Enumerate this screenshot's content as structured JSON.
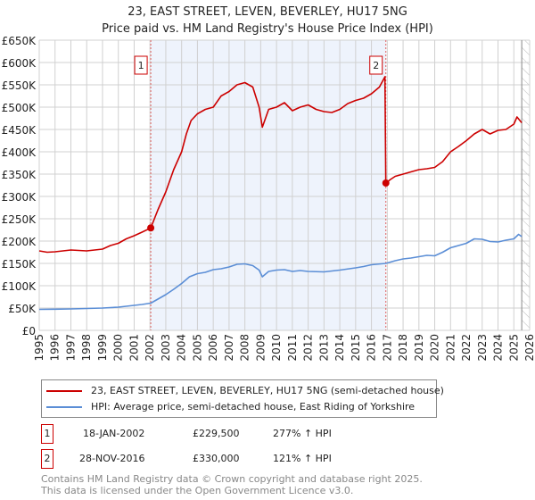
{
  "chart_data": {
    "type": "line",
    "title": "23, EAST STREET, LEVEN, BEVERLEY, HU17 5NG",
    "subtitle": "Price paid vs. HM Land Registry's House Price Index (HPI)",
    "xlim": [
      1995,
      2026
    ],
    "ylim": [
      0,
      650000
    ],
    "x_ticks": [
      "1995",
      "1996",
      "1997",
      "1998",
      "1999",
      "2000",
      "2001",
      "2002",
      "2003",
      "2004",
      "2005",
      "2006",
      "2007",
      "2008",
      "2009",
      "2010",
      "2011",
      "2012",
      "2013",
      "2014",
      "2015",
      "2016",
      "2017",
      "2018",
      "2019",
      "2020",
      "2021",
      "2022",
      "2023",
      "2024",
      "2025",
      "2026"
    ],
    "y_ticks": [
      {
        "v": 0,
        "label": "£0"
      },
      {
        "v": 50000,
        "label": "£50K"
      },
      {
        "v": 100000,
        "label": "£100K"
      },
      {
        "v": 150000,
        "label": "£150K"
      },
      {
        "v": 200000,
        "label": "£200K"
      },
      {
        "v": 250000,
        "label": "£250K"
      },
      {
        "v": 300000,
        "label": "£300K"
      },
      {
        "v": 350000,
        "label": "£350K"
      },
      {
        "v": 400000,
        "label": "£400K"
      },
      {
        "v": 450000,
        "label": "£450K"
      },
      {
        "v": 500000,
        "label": "£500K"
      },
      {
        "v": 550000,
        "label": "£550K"
      },
      {
        "v": 600000,
        "label": "£600K"
      },
      {
        "v": 650000,
        "label": "£650K"
      }
    ],
    "grid": true,
    "series": [
      {
        "name": "23, EAST STREET, LEVEN, BEVERLEY, HU17 5NG (semi-detached house)",
        "color": "#cc0000",
        "x": [
          1995,
          1995.5,
          1996,
          1997,
          1998,
          1999,
          1999.5,
          2000,
          2000.5,
          2001,
          2001.5,
          2002.05,
          2002.5,
          2003,
          2003.5,
          2004,
          2004.3,
          2004.6,
          2005,
          2005.5,
          2006,
          2006.5,
          2007,
          2007.5,
          2008,
          2008.5,
          2008.9,
          2009.1,
          2009.5,
          2010,
          2010.5,
          2011,
          2011.5,
          2012,
          2012.5,
          2013,
          2013.5,
          2014,
          2014.5,
          2015,
          2015.5,
          2016,
          2016.5,
          2016.85,
          2016.91,
          2017.2,
          2017.5,
          2018,
          2018.5,
          2019,
          2019.5,
          2020,
          2020.5,
          2021,
          2021.5,
          2022,
          2022.5,
          2023,
          2023.5,
          2024,
          2024.5,
          2025,
          2025.2,
          2025.5
        ],
        "y": [
          178000,
          175000,
          176000,
          180000,
          178000,
          182000,
          190000,
          195000,
          205000,
          212000,
          220000,
          229500,
          270000,
          310000,
          360000,
          400000,
          440000,
          470000,
          485000,
          495000,
          500000,
          525000,
          535000,
          550000,
          555000,
          545000,
          500000,
          455000,
          495000,
          500000,
          510000,
          492000,
          500000,
          505000,
          495000,
          490000,
          488000,
          495000,
          508000,
          515000,
          520000,
          530000,
          545000,
          568000,
          330000,
          338000,
          345000,
          350000,
          355000,
          360000,
          362000,
          365000,
          378000,
          400000,
          412000,
          425000,
          440000,
          450000,
          440000,
          448000,
          450000,
          462000,
          478000,
          465000
        ]
      },
      {
        "name": "HPI: Average price, semi-detached house, East Riding of Yorkshire",
        "color": "#5b8ed6",
        "x": [
          1995,
          1996,
          1997,
          1998,
          1999,
          2000,
          2001,
          2001.5,
          2002.05,
          2002.5,
          2003,
          2003.5,
          2004,
          2004.5,
          2005,
          2005.5,
          2006,
          2006.5,
          2007,
          2007.5,
          2008,
          2008.5,
          2008.9,
          2009.1,
          2009.5,
          2010,
          2010.5,
          2011,
          2011.5,
          2012,
          2013,
          2014,
          2015,
          2015.5,
          2016,
          2016.91,
          2017.5,
          2018,
          2018.5,
          2019,
          2019.5,
          2020,
          2020.5,
          2021,
          2021.5,
          2022,
          2022.5,
          2023,
          2023.5,
          2024,
          2024.5,
          2025,
          2025.3,
          2025.5
        ],
        "y": [
          47000,
          47500,
          48000,
          49000,
          50000,
          52000,
          56000,
          58000,
          61000,
          70000,
          80000,
          92000,
          105000,
          120000,
          127000,
          130000,
          136000,
          138000,
          142000,
          148000,
          149000,
          145000,
          135000,
          120000,
          132000,
          135000,
          136000,
          132000,
          134000,
          132000,
          131000,
          135000,
          140000,
          143000,
          147000,
          150000,
          156000,
          160000,
          162000,
          165000,
          168000,
          167000,
          175000,
          185000,
          190000,
          195000,
          205000,
          204000,
          199000,
          198000,
          202000,
          205000,
          215000,
          210000
        ]
      }
    ],
    "sales": [
      {
        "id": "1",
        "x": 2002.05,
        "date": "18-JAN-2002",
        "price_value": 229500,
        "price": "£229,500",
        "hpi": "277% ↑ HPI"
      },
      {
        "id": "2",
        "x": 2016.91,
        "date": "28-NOV-2016",
        "price_value": 330000,
        "price": "£330,000",
        "hpi": "121% ↑ HPI"
      }
    ],
    "shaded_between_sales": true,
    "forecast_hatch_from": 2025.5,
    "legend_placement": "below"
  },
  "footer": {
    "line1": "Contains HM Land Registry data © Crown copyright and database right 2025.",
    "line2": "This data is licensed under the Open Government Licence v3.0."
  }
}
